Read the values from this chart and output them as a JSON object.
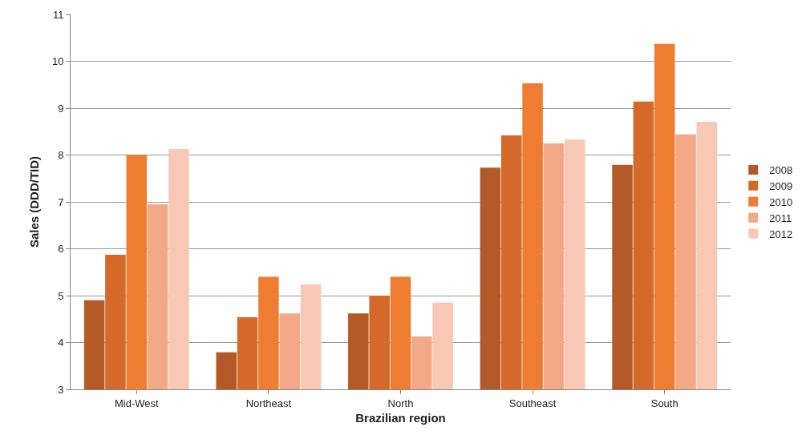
{
  "chart_data": {
    "type": "bar",
    "xlabel": "Brazilian region",
    "ylabel": "Sales (DDD/TID)",
    "categories": [
      "Mid-West",
      "Northeast",
      "North",
      "Southeast",
      "South"
    ],
    "series": [
      {
        "name": "2008",
        "color": "#b35a28",
        "values": [
          4.9,
          3.79,
          4.62,
          7.73,
          7.79
        ]
      },
      {
        "name": "2009",
        "color": "#d4692a",
        "values": [
          5.87,
          4.54,
          5.0,
          8.42,
          9.14
        ]
      },
      {
        "name": "2010",
        "color": "#ee7d32",
        "values": [
          8.0,
          5.4,
          5.4,
          9.53,
          10.37
        ]
      },
      {
        "name": "2011",
        "color": "#f3a888",
        "values": [
          6.95,
          4.62,
          4.13,
          8.25,
          8.44
        ]
      },
      {
        "name": "2012",
        "color": "#f8c8b5",
        "values": [
          8.13,
          5.24,
          4.85,
          8.33,
          8.71
        ]
      }
    ],
    "ylim": [
      3,
      11
    ],
    "yticks": [
      3,
      4,
      5,
      6,
      7,
      8,
      9,
      10,
      11
    ],
    "grid": "y",
    "legend": "right"
  }
}
